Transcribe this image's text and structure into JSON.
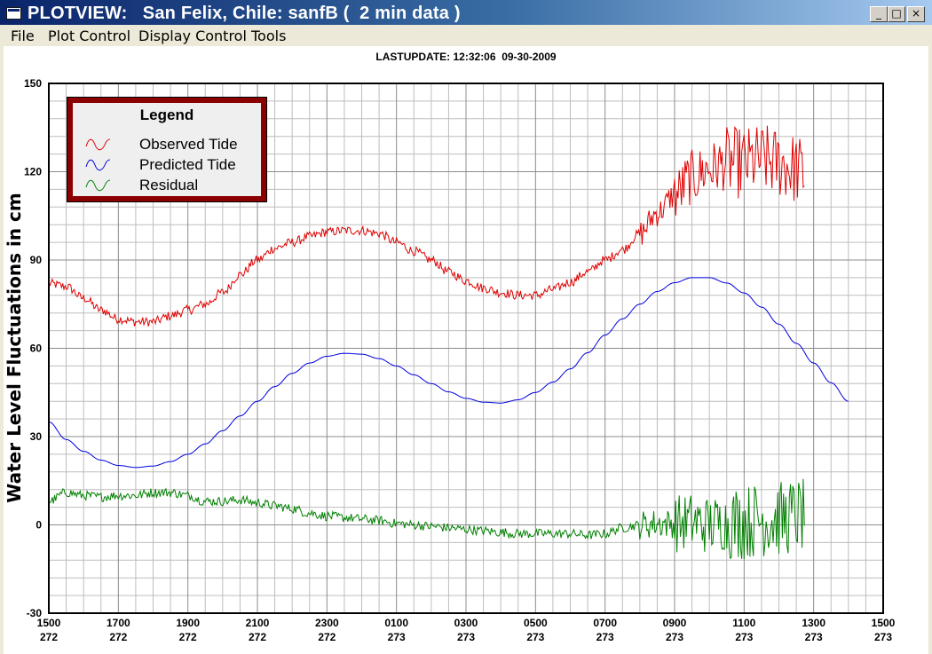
{
  "window": {
    "title": "PLOTVIEW:   San Felix, Chile: sanfB (  2 min data )",
    "controls": {
      "minimize": "_",
      "maximize": "□",
      "close": "×"
    }
  },
  "menu": [
    "File",
    "Plot Control",
    "Display Control",
    "Tools"
  ],
  "plot": {
    "last_update": "LASTUPDATE: 12:32:06  09-30-2009"
  },
  "chart_data": {
    "type": "line",
    "title": "",
    "ylabel": "Water Level Fluctuations in cm",
    "xlabel": "",
    "ylim": [
      -30,
      150
    ],
    "yticks": [
      -30,
      0,
      30,
      60,
      90,
      120,
      150
    ],
    "xlim_hours": [
      0,
      24
    ],
    "xticks": [
      {
        "time": "1500",
        "day": "272"
      },
      {
        "time": "1700",
        "day": "272"
      },
      {
        "time": "1900",
        "day": "272"
      },
      {
        "time": "2100",
        "day": "272"
      },
      {
        "time": "2300",
        "day": "272"
      },
      {
        "time": "0100",
        "day": "273"
      },
      {
        "time": "0300",
        "day": "273"
      },
      {
        "time": "0500",
        "day": "273"
      },
      {
        "time": "0700",
        "day": "273"
      },
      {
        "time": "0900",
        "day": "273"
      },
      {
        "time": "1100",
        "day": "273"
      },
      {
        "time": "1300",
        "day": "273"
      },
      {
        "time": "1500",
        "day": "273"
      }
    ],
    "grid": true,
    "legend": {
      "title": "Legend",
      "placement": "top-left"
    },
    "series": [
      {
        "name": "Observed Tide",
        "color": "#e00000",
        "noisy": true,
        "points": [
          [
            "1500 272",
            82
          ],
          [
            "1530 272",
            81
          ],
          [
            "1600 272",
            77
          ],
          [
            "1630 272",
            73
          ],
          [
            "1700 272",
            70
          ],
          [
            "1730 272",
            69
          ],
          [
            "1800 272",
            69
          ],
          [
            "1830 272",
            71
          ],
          [
            "1900 272",
            73
          ],
          [
            "1930 272",
            75
          ],
          [
            "2000 272",
            79
          ],
          [
            "2030 272",
            85
          ],
          [
            "2100 272",
            90
          ],
          [
            "2130 272",
            94
          ],
          [
            "2200 272",
            96
          ],
          [
            "2230 272",
            98
          ],
          [
            "2300 272",
            99.5
          ],
          [
            "2330 272",
            100
          ],
          [
            "0000 273",
            100
          ],
          [
            "0030 273",
            99
          ],
          [
            "0100 273",
            96
          ],
          [
            "0130 273",
            93
          ],
          [
            "0200 273",
            90
          ],
          [
            "0230 273",
            86
          ],
          [
            "0300 273",
            83
          ],
          [
            "0330 273",
            80.5
          ],
          [
            "0400 273",
            79
          ],
          [
            "0430 273",
            78
          ],
          [
            "0500 273",
            78
          ],
          [
            "0530 273",
            80
          ],
          [
            "0600 273",
            82.5
          ],
          [
            "0630 273",
            86
          ],
          [
            "0700 273",
            90
          ],
          [
            "0730 273",
            93.5
          ],
          [
            "0800 273",
            99
          ],
          [
            "0830 273",
            106
          ],
          [
            "0900 273",
            112
          ],
          [
            "0930 273",
            118
          ],
          [
            "1000 273",
            121
          ],
          [
            "1030 273",
            123
          ],
          [
            "1100 273",
            123
          ],
          [
            "1130 273",
            124
          ],
          [
            "1200 273",
            123
          ],
          [
            "1230 273",
            121
          ],
          [
            "1245 273",
            119
          ]
        ]
      },
      {
        "name": "Predicted Tide",
        "color": "#0000e0",
        "noisy": false,
        "points": [
          [
            "1500 272",
            35
          ],
          [
            "1530 272",
            29
          ],
          [
            "1600 272",
            25
          ],
          [
            "1630 272",
            22
          ],
          [
            "1700 272",
            20.2
          ],
          [
            "1730 272",
            19.5
          ],
          [
            "1800 272",
            20
          ],
          [
            "1830 272",
            21.5
          ],
          [
            "1900 272",
            24
          ],
          [
            "1930 272",
            27.5
          ],
          [
            "2000 272",
            32
          ],
          [
            "2030 272",
            37
          ],
          [
            "2100 272",
            42
          ],
          [
            "2130 272",
            47
          ],
          [
            "2200 272",
            51.5
          ],
          [
            "2230 272",
            55
          ],
          [
            "2300 272",
            57.3
          ],
          [
            "2330 272",
            58.3
          ],
          [
            "0000 273",
            58
          ],
          [
            "0030 273",
            56.5
          ],
          [
            "0100 273",
            54
          ],
          [
            "0130 273",
            51
          ],
          [
            "0200 273",
            48
          ],
          [
            "0230 273",
            45.2
          ],
          [
            "0300 273",
            43
          ],
          [
            "0330 273",
            41.7
          ],
          [
            "0400 273",
            41.4
          ],
          [
            "0430 273",
            42.5
          ],
          [
            "0500 273",
            45
          ],
          [
            "0530 273",
            48.5
          ],
          [
            "0600 273",
            53
          ],
          [
            "0630 273",
            58.5
          ],
          [
            "0700 273",
            64.5
          ],
          [
            "0730 273",
            70
          ],
          [
            "0800 273",
            75
          ],
          [
            "0830 273",
            79.3
          ],
          [
            "0900 273",
            82.3
          ],
          [
            "0930 273",
            84
          ],
          [
            "1000 273",
            84
          ],
          [
            "1030 273",
            82.2
          ],
          [
            "1100 273",
            78.8
          ],
          [
            "1130 273",
            74
          ],
          [
            "1200 273",
            68.2
          ],
          [
            "1230 273",
            61.7
          ],
          [
            "1300 273",
            55
          ],
          [
            "1330 273",
            48.3
          ],
          [
            "1400 273",
            42
          ]
        ]
      },
      {
        "name": "Residual",
        "color": "#008000",
        "noisy": true,
        "points": [
          [
            "1500 272",
            8
          ],
          [
            "1530 272",
            11
          ],
          [
            "1600 272",
            10
          ],
          [
            "1630 272",
            9.5
          ],
          [
            "1700 272",
            10
          ],
          [
            "1730 272",
            10
          ],
          [
            "1800 272",
            11
          ],
          [
            "1830 272",
            11
          ],
          [
            "1900 272",
            10
          ],
          [
            "1930 272",
            8
          ],
          [
            "2000 272",
            8
          ],
          [
            "2030 272",
            8.5
          ],
          [
            "2100 272",
            7.5
          ],
          [
            "2130 272",
            6.5
          ],
          [
            "2200 272",
            5.5
          ],
          [
            "2230 272",
            4
          ],
          [
            "2300 272",
            3
          ],
          [
            "2330 272",
            2.5
          ],
          [
            "0000 273",
            2
          ],
          [
            "0030 273",
            1.5
          ],
          [
            "0100 273",
            0.5
          ],
          [
            "0130 273",
            0
          ],
          [
            "0200 273",
            -0.5
          ],
          [
            "0230 273",
            -1
          ],
          [
            "0300 273",
            -1.5
          ],
          [
            "0330 273",
            -2
          ],
          [
            "0400 273",
            -2.5
          ],
          [
            "0430 273",
            -3
          ],
          [
            "0500 273",
            -3
          ],
          [
            "0530 273",
            -3
          ],
          [
            "0600 273",
            -3
          ],
          [
            "0630 273",
            -3.5
          ],
          [
            "0700 273",
            -3
          ],
          [
            "0730 273",
            -1
          ],
          [
            "0800 273",
            0
          ],
          [
            "0830 273",
            0.5
          ],
          [
            "0900 273",
            0.5
          ],
          [
            "0930 273",
            1
          ],
          [
            "1000 273",
            0
          ],
          [
            "1030 273",
            1
          ],
          [
            "1100 273",
            1
          ],
          [
            "1130 273",
            2
          ],
          [
            "1200 273",
            2
          ],
          [
            "1230 273",
            3
          ],
          [
            "1245 273",
            3
          ]
        ]
      }
    ]
  }
}
